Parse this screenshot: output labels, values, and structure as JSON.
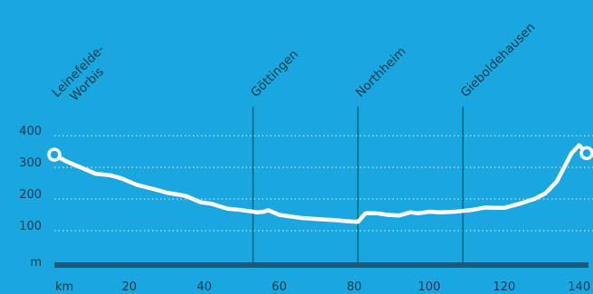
{
  "chart_data": {
    "type": "line",
    "title": "",
    "xlabel": "km",
    "ylabel": "m",
    "xlim": [
      0,
      142
    ],
    "ylim": [
      0,
      400
    ],
    "x_ticks": [
      20,
      40,
      60,
      80,
      100,
      120,
      140
    ],
    "y_ticks": [
      100,
      200,
      300,
      400
    ],
    "grid": "dotted horizontal",
    "line_color": "#ffffff",
    "background": "#1aa6de",
    "axis_color": "#1d5a7a",
    "stops": [
      {
        "km": 0,
        "lines": [
          "Leinefelde-",
          "Worbis"
        ]
      },
      {
        "km": 53,
        "lines": [
          "Göttingen"
        ]
      },
      {
        "km": 81,
        "lines": [
          "Northheim"
        ]
      },
      {
        "km": 109,
        "lines": [
          "Gieboldehausen"
        ]
      }
    ],
    "series": [
      {
        "x": [
          0,
          3,
          7,
          11,
          15,
          18,
          22,
          27,
          30,
          35,
          39,
          42,
          46,
          50,
          53,
          54,
          56,
          57,
          60,
          63,
          66,
          70,
          75,
          78,
          81,
          83,
          86,
          89,
          92,
          95,
          97,
          100,
          103,
          107,
          111,
          115,
          117,
          120,
          124,
          128,
          131,
          134,
          136,
          138,
          140,
          142
        ],
        "y": [
          340,
          320,
          300,
          280,
          275,
          265,
          245,
          230,
          220,
          210,
          190,
          185,
          170,
          165,
          160,
          158,
          160,
          165,
          150,
          145,
          140,
          137,
          133,
          130,
          128,
          155,
          155,
          150,
          148,
          158,
          155,
          160,
          158,
          160,
          165,
          173,
          172,
          172,
          185,
          200,
          218,
          255,
          300,
          345,
          370,
          345
        ]
      }
    ]
  }
}
